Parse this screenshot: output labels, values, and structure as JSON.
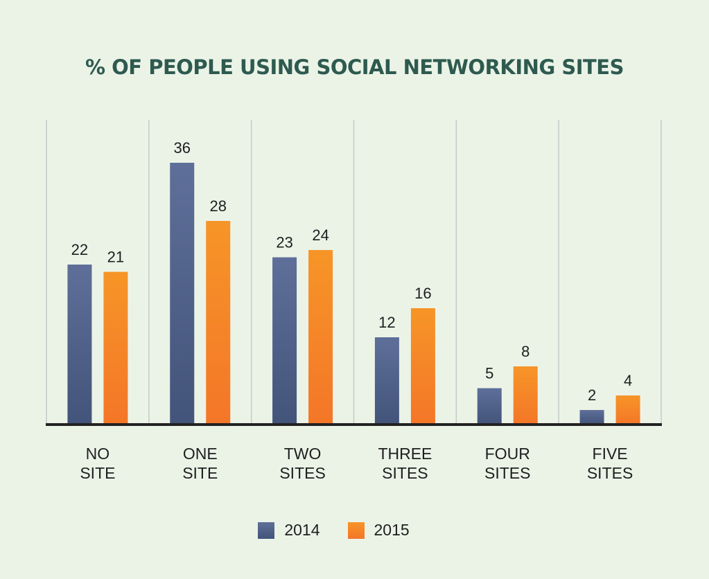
{
  "chart_data": {
    "type": "bar",
    "title": "% OF PEOPLE USING SOCIAL NETWORKING SITES",
    "categories": [
      [
        "NO",
        "SITE"
      ],
      [
        "ONE",
        "SITE"
      ],
      [
        "TWO",
        "SITES"
      ],
      [
        "THREE",
        "SITES"
      ],
      [
        "FOUR",
        "SITES"
      ],
      [
        "FIVE",
        "SITES"
      ]
    ],
    "series": [
      {
        "name": "2014",
        "values": [
          22,
          36,
          23,
          12,
          5,
          2
        ],
        "color_top": "#5e6f99",
        "color_bottom": "#43547a"
      },
      {
        "name": "2015",
        "values": [
          21,
          28,
          24,
          16,
          8,
          4
        ],
        "color_top": "#f69527",
        "color_bottom": "#f47628"
      }
    ],
    "ylim": [
      0,
      42
    ],
    "grid": true,
    "legend": "bottom-center",
    "data_labels": true
  },
  "colors": {
    "background": "#ebf3e7",
    "title": "#2e5a4f",
    "axis": "#222222",
    "grid": "#c8c8c8",
    "text": "#1e1e1e"
  }
}
